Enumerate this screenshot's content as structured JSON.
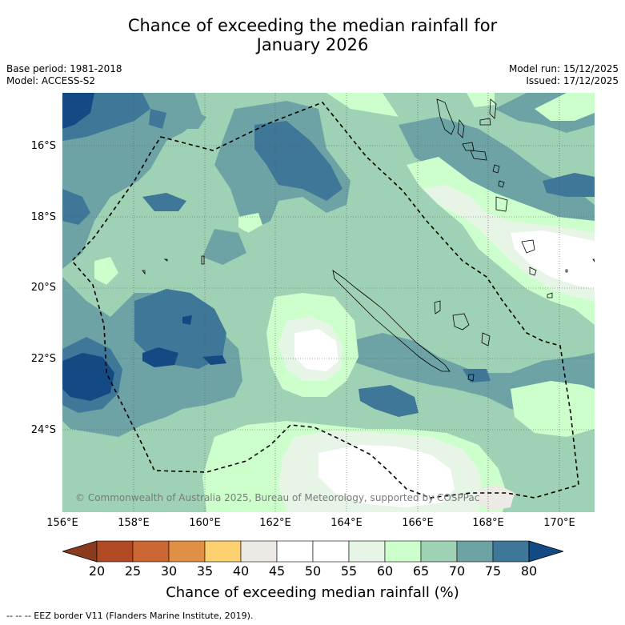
{
  "title_line1": "Chance of exceeding the median rainfall for",
  "title_line2": "January 2026",
  "base_period": "Base period: 1981-2018",
  "model": "Model: ACCESS-S2",
  "model_run": "Model run: 15/12/2025",
  "issued": "Issued: 17/12/2025",
  "copyright": "© Commonwealth of Australia 2025, Bureau of Meteorology, supported by COSPPac",
  "lat_labels": [
    "16°S",
    "18°S",
    "20°S",
    "22°S",
    "24°S"
  ],
  "lon_labels": [
    "156°E",
    "158°E",
    "160°E",
    "162°E",
    "164°E",
    "166°E",
    "168°E",
    "170°E"
  ],
  "colorbar": {
    "title": "Chance of exceeding median rainfall (%)",
    "labels": [
      "20",
      "25",
      "30",
      "35",
      "40",
      "45",
      "50",
      "55",
      "60",
      "65",
      "70",
      "75",
      "80"
    ],
    "colors": [
      "#8b3a1e",
      "#b14a24",
      "#cc6633",
      "#e09044",
      "#fcd06e",
      "#ede9e4",
      "#ffffff",
      "#f9fbf9",
      "#e6f5e6",
      "#ccffcc",
      "#9fd1b4",
      "#6ea3a6",
      "#3e7798",
      "#144a84"
    ]
  },
  "footnote": "--  --  -- EEZ border V11 (Flanders Marine Institute, 2019)."
}
